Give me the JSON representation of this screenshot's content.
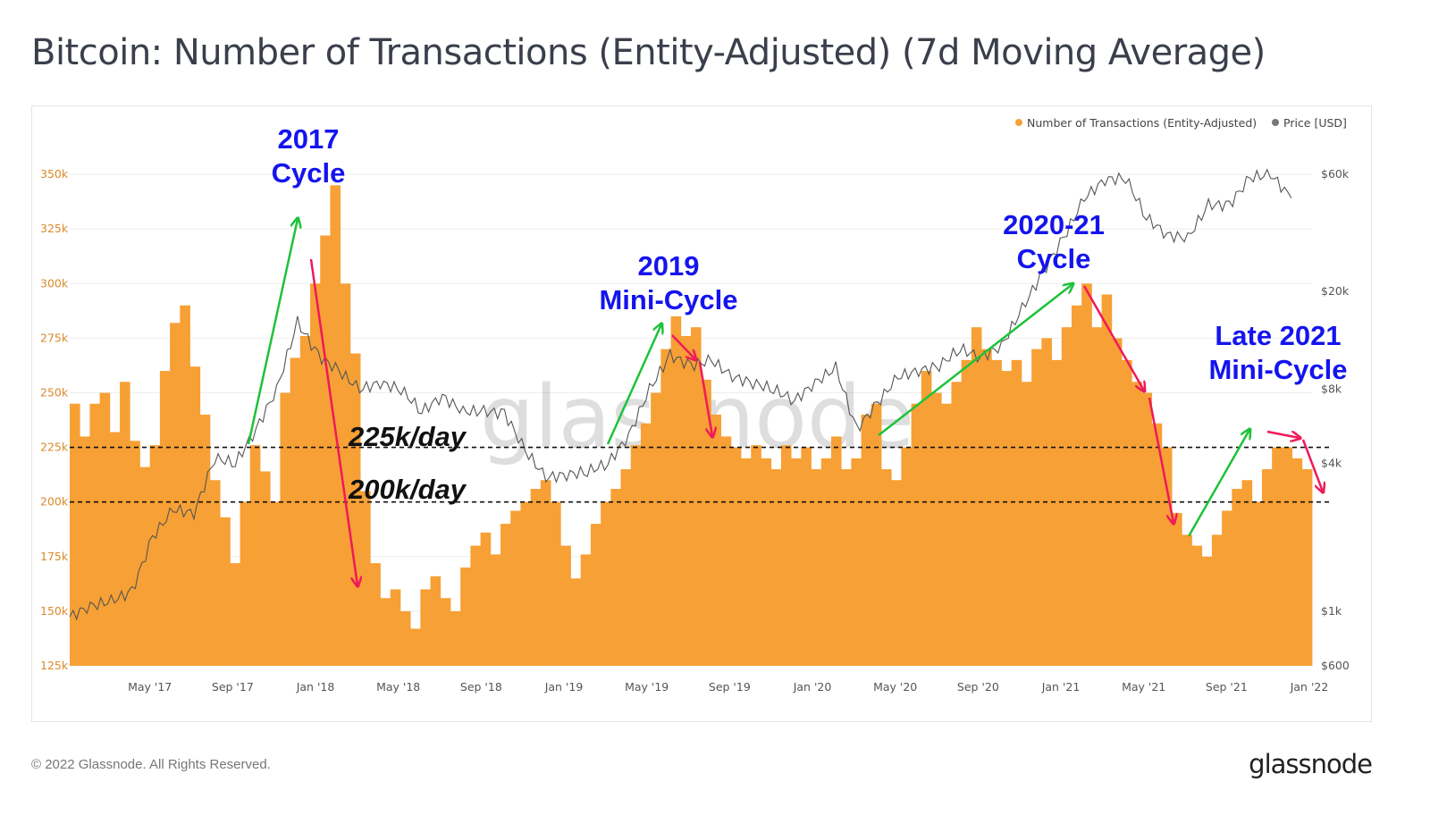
{
  "title": "Bitcoin: Number of Transactions (Entity-Adjusted) (7d Moving Average)",
  "footer": {
    "copyright": "© 2022 Glassnode. All Rights Reserved.",
    "logo": "glassnode"
  },
  "watermark": "glassnode",
  "colors": {
    "bars": "#f7a035",
    "price": "#555555",
    "up_arrow": "#1ec23a",
    "down_arrow": "#f0195a",
    "annotation": "#1414ee"
  },
  "chart_data": {
    "type": "bar",
    "title": "Bitcoin: Number of Transactions (Entity-Adjusted) (7d Moving Average)",
    "x_start": "Jan 2017",
    "x_resolution": "semi-monthly (tx), monthly (price)",
    "legend": {
      "placement": "top-right",
      "entries": [
        "Number of Transactions (Entity-Adjusted)",
        "Price [USD]"
      ]
    },
    "x_ticks": [
      "May '17",
      "Sep '17",
      "Jan '18",
      "May '18",
      "Sep '18",
      "Jan '19",
      "May '19",
      "Sep '19",
      "Jan '20",
      "May '20",
      "Sep '20",
      "Jan '21",
      "May '21",
      "Sep '21",
      "Jan '22"
    ],
    "y_left": {
      "ticks": [
        "125k",
        "150k",
        "175k",
        "200k",
        "225k",
        "250k",
        "275k",
        "300k",
        "325k",
        "350k"
      ],
      "range": [
        125000,
        350000
      ]
    },
    "y_right": {
      "scale": "log",
      "ticks": [
        "$600",
        "$1k",
        "$4k",
        "$8k",
        "$20k",
        "$60k"
      ],
      "tick_values": [
        600,
        1000,
        4000,
        8000,
        20000,
        60000
      ],
      "range": [
        600,
        60000
      ]
    },
    "series": [
      {
        "name": "Number of Transactions (Entity-Adjusted)",
        "unit": "k",
        "values": [
          245,
          230,
          245,
          250,
          232,
          255,
          228,
          216,
          226,
          260,
          282,
          290,
          262,
          240,
          210,
          193,
          172,
          200,
          226,
          214,
          200,
          250,
          266,
          276,
          300,
          322,
          345,
          300,
          268,
          205,
          172,
          156,
          160,
          150,
          142,
          160,
          166,
          156,
          150,
          170,
          180,
          186,
          176,
          190,
          196,
          200,
          206,
          210,
          200,
          180,
          165,
          176,
          190,
          200,
          206,
          215,
          226,
          236,
          250,
          270,
          285,
          276,
          280,
          256,
          240,
          230,
          225,
          220,
          226,
          220,
          215,
          226,
          220,
          225,
          215,
          220,
          230,
          215,
          220,
          240,
          245,
          215,
          210,
          225,
          245,
          260,
          250,
          245,
          255,
          265,
          280,
          270,
          265,
          260,
          265,
          255,
          270,
          275,
          265,
          280,
          290,
          300,
          280,
          295,
          275,
          265,
          255,
          250,
          236,
          225,
          195,
          185,
          180,
          175,
          185,
          196,
          206,
          210,
          200,
          215,
          225,
          225,
          220,
          215
        ]
      },
      {
        "name": "Price [USD]",
        "values": [
          950,
          1050,
          1100,
          1200,
          2000,
          2600,
          2500,
          4200,
          4000,
          5500,
          8000,
          15000,
          11000,
          9500,
          8000,
          8500,
          8000,
          6500,
          7500,
          6500,
          6500,
          6400,
          4500,
          3500,
          3600,
          3700,
          4000,
          5200,
          8000,
          11000,
          10000,
          10500,
          9000,
          8500,
          8000,
          7200,
          8500,
          9800,
          5500,
          7000,
          9000,
          9500,
          10000,
          11700,
          10800,
          12000,
          17000,
          24000,
          33000,
          48000,
          57000,
          58000,
          40000,
          34000,
          33000,
          45000,
          45000,
          58000,
          60000,
          48000
        ]
      }
    ],
    "reference_lines": [
      {
        "value": 225000,
        "label": "225k/day"
      },
      {
        "value": 200000,
        "label": "200k/day"
      }
    ],
    "annotations": [
      {
        "line1": "2017",
        "line2": "Cycle"
      },
      {
        "line1": "2019",
        "line2": "Mini-Cycle"
      },
      {
        "line1": "2020-21",
        "line2": "Cycle"
      },
      {
        "line1": "Late 2021",
        "line2": "Mini-Cycle"
      }
    ]
  }
}
